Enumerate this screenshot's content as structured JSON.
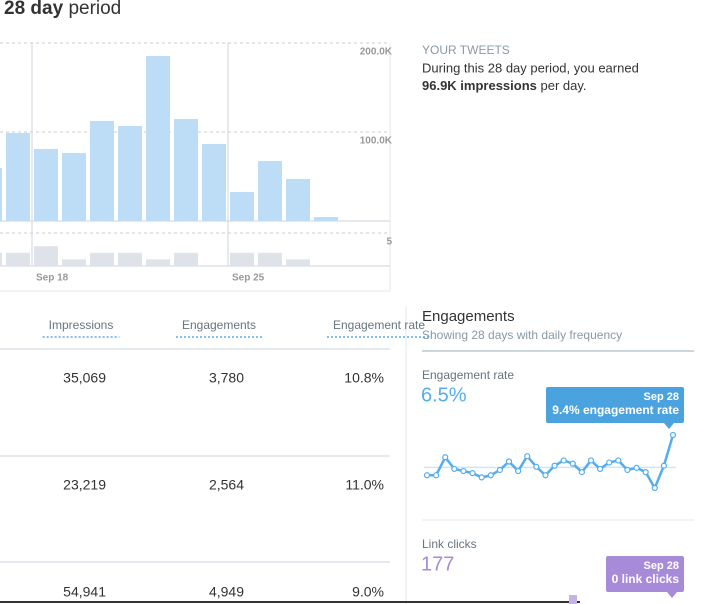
{
  "header": {
    "title_bold": "28 day",
    "title_rest": "period"
  },
  "summary": {
    "heading": "YOUR TWEETS",
    "line1": "During this 28 day period, you earned",
    "highlight": "96.9K impressions",
    "tail": "per day."
  },
  "impressions_chart": {
    "type": "bar",
    "categories": [
      null,
      null,
      "Sep 18",
      null,
      null,
      null,
      null,
      null,
      null,
      "Sep 25",
      null,
      null,
      null
    ],
    "values": [
      59600,
      98900,
      80900,
      76400,
      112400,
      106700,
      185400,
      114600,
      86500,
      32600,
      67400,
      47200,
      4500
    ],
    "color": "#bddcf5",
    "ylim": [
      0,
      200000
    ],
    "yticks": [
      {
        "value": 100000,
        "label": "100.0K"
      },
      {
        "value": 200000,
        "label": "200.0K"
      }
    ],
    "grid": true
  },
  "mini_chart": {
    "type": "bar",
    "values": [
      2,
      2,
      3,
      1,
      2,
      2,
      1,
      2,
      0,
      2,
      2,
      1,
      0
    ],
    "color": "#dde3e8",
    "ylim": [
      0,
      5
    ],
    "yticks": [
      5
    ],
    "grid": true
  },
  "table": {
    "headers": [
      "Impressions",
      "Engagements",
      "Engagement rate"
    ],
    "rows": [
      [
        "35,069",
        "3,780",
        "10.8%"
      ],
      [
        "23,219",
        "2,564",
        "11.0%"
      ],
      [
        "54,941",
        "4,949",
        "9.0%"
      ]
    ]
  },
  "engagements": {
    "title": "Engagements",
    "subtitle": "Showing 28 days with daily frequency",
    "rate_label": "Engagement rate",
    "rate_value": "6.5%",
    "rate_tooltip_date": "Sep 28",
    "rate_tooltip_text": "9.4% engagement rate",
    "clicks_label": "Link clicks",
    "clicks_value": "177",
    "clicks_tooltip_date": "Sep 28",
    "clicks_tooltip_text": "0 link clicks"
  },
  "engagement_chart": {
    "type": "line",
    "color": "#55acee",
    "values": [
      5.6,
      5.6,
      7.3,
      6.2,
      6.0,
      5.8,
      5.4,
      5.6,
      6.1,
      6.9,
      6.0,
      7.4,
      6.4,
      5.6,
      6.5,
      7.0,
      6.7,
      5.9,
      7.0,
      6.2,
      6.8,
      7.0,
      6.1,
      6.3,
      5.9,
      4.4,
      6.5,
      9.4
    ]
  }
}
